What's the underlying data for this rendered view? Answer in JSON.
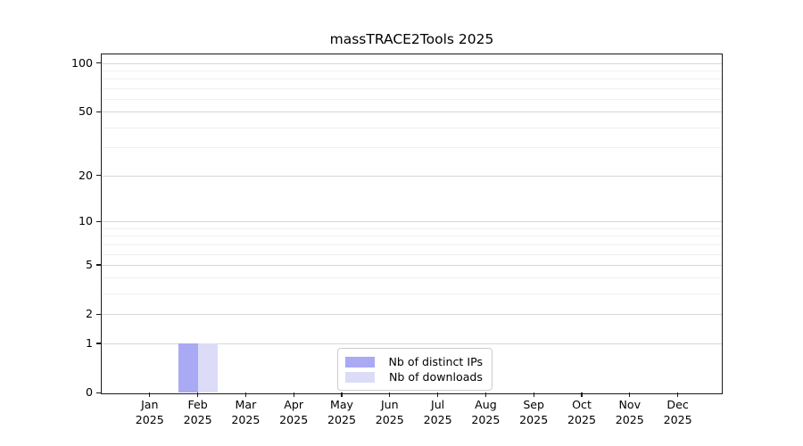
{
  "chart_data": {
    "type": "bar",
    "title": "massTRACE2Tools 2025",
    "categories": [
      "Jan",
      "Feb",
      "Mar",
      "Apr",
      "May",
      "Jun",
      "Jul",
      "Aug",
      "Sep",
      "Oct",
      "Nov",
      "Dec"
    ],
    "year": "2025",
    "series": [
      {
        "name": "Nb of distinct IPs",
        "color": "#a9a9f4",
        "values": [
          0,
          1,
          0,
          0,
          0,
          0,
          0,
          0,
          0,
          0,
          0,
          0
        ]
      },
      {
        "name": "Nb of downloads",
        "color": "#dcdcf8",
        "values": [
          0,
          1,
          0,
          0,
          0,
          0,
          0,
          0,
          0,
          0,
          0,
          0
        ]
      }
    ],
    "y_axis": {
      "scale": "log10(1+x)",
      "major_ticks": [
        100,
        50,
        20,
        10,
        5,
        2,
        1,
        0
      ],
      "minor_gridlines": [
        3,
        4,
        6,
        7,
        8,
        9,
        30,
        40,
        60,
        70,
        80,
        90
      ],
      "top_value": 113
    },
    "grid": true,
    "legend_position": "lower center",
    "colors": {
      "major_grid": "#d7d7d7",
      "minor_grid": "#f0f0f0",
      "axis": "#1a1a1a",
      "background": "#ffffff"
    }
  }
}
